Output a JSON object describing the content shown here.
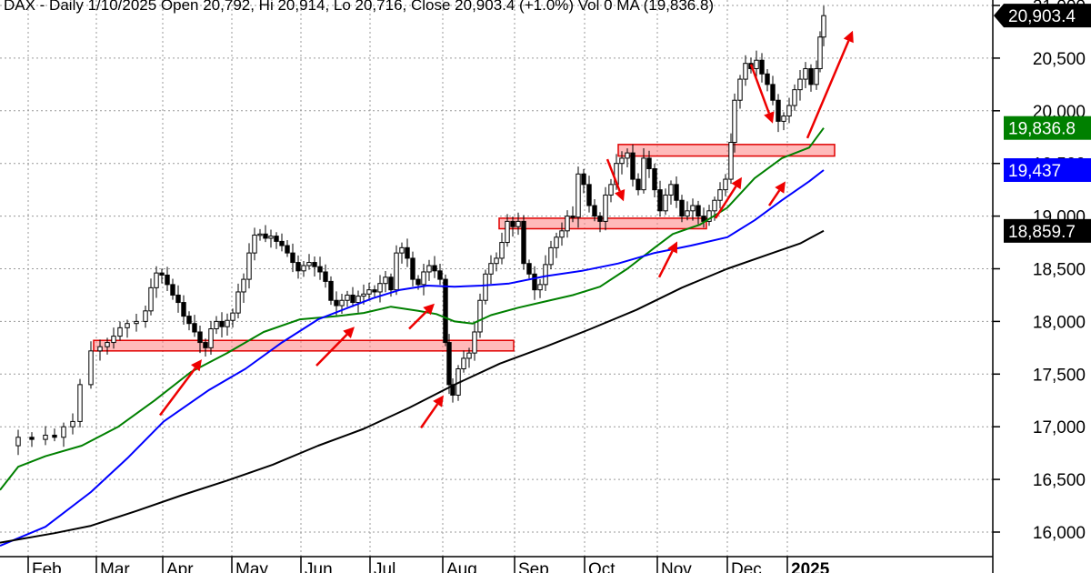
{
  "chart_data": {
    "type": "candlestick",
    "header": "DAX - Daily  1/10/2025  Open 20,792,  Hi 20,914,  Lo 20,716,  Close 20,903.4 (+1.0%)  Vol 0  MA (19,836.8)",
    "x_labels": [
      "Feb",
      "Mar",
      "Apr",
      "May",
      "Jun",
      "Jul",
      "Aug",
      "Sep",
      "Oct",
      "Nov",
      "Dec",
      "2025"
    ],
    "y_ticks": [
      "16,000",
      "16,500",
      "17,000",
      "17,500",
      "18,000",
      "18,500",
      "19,000",
      "19,500",
      "20,000",
      "20,500",
      "21,000"
    ],
    "ylim": [
      15870,
      21010
    ],
    "grid": true,
    "price_tags": [
      {
        "label": "20,903.4",
        "value": 20903.4,
        "color": "#000000",
        "text_color": "#ffffff",
        "arrow": true
      },
      {
        "label": "19,836.8",
        "value": 19836.8,
        "color": "#008000",
        "text_color": "#ffffff",
        "arrow": false
      },
      {
        "label": "19,437",
        "value": 19437,
        "color": "#0000ff",
        "text_color": "#ffffff",
        "arrow": false
      },
      {
        "label": "18,859.7",
        "value": 18859.7,
        "color": "#000000",
        "text_color": "#ffffff",
        "arrow": false
      }
    ],
    "series": [
      {
        "name": "MA",
        "color": "#008000",
        "points": [
          [
            0,
            16400
          ],
          [
            20,
            16620
          ],
          [
            50,
            16720
          ],
          [
            90,
            16820
          ],
          [
            130,
            17000
          ],
          [
            170,
            17250
          ],
          [
            210,
            17520
          ],
          [
            250,
            17700
          ],
          [
            290,
            17900
          ],
          [
            330,
            18020
          ],
          [
            370,
            18050
          ],
          [
            400,
            18080
          ],
          [
            430,
            18140
          ],
          [
            460,
            18100
          ],
          [
            480,
            18070
          ],
          [
            500,
            18000
          ],
          [
            520,
            17980
          ],
          [
            540,
            18060
          ],
          [
            570,
            18130
          ],
          [
            600,
            18190
          ],
          [
            630,
            18250
          ],
          [
            660,
            18330
          ],
          [
            690,
            18500
          ],
          [
            720,
            18700
          ],
          [
            740,
            18830
          ],
          [
            770,
            18920
          ],
          [
            800,
            19080
          ],
          [
            830,
            19360
          ],
          [
            860,
            19550
          ],
          [
            890,
            19650
          ],
          [
            906,
            19836.8
          ]
        ]
      },
      {
        "name": "MA",
        "color": "#0000ff",
        "points": [
          [
            0,
            15870
          ],
          [
            50,
            16050
          ],
          [
            100,
            16380
          ],
          [
            140,
            16700
          ],
          [
            180,
            17050
          ],
          [
            230,
            17350
          ],
          [
            270,
            17550
          ],
          [
            310,
            17800
          ],
          [
            350,
            18020
          ],
          [
            380,
            18120
          ],
          [
            410,
            18220
          ],
          [
            440,
            18300
          ],
          [
            470,
            18340
          ],
          [
            500,
            18330
          ],
          [
            530,
            18340
          ],
          [
            560,
            18360
          ],
          [
            600,
            18430
          ],
          [
            640,
            18480
          ],
          [
            680,
            18550
          ],
          [
            720,
            18650
          ],
          [
            760,
            18720
          ],
          [
            800,
            18800
          ],
          [
            830,
            18960
          ],
          [
            860,
            19150
          ],
          [
            890,
            19330
          ],
          [
            906,
            19437
          ]
        ]
      },
      {
        "name": "MA",
        "color": "#000000",
        "points": [
          [
            0,
            15900
          ],
          [
            60,
            15990
          ],
          [
            100,
            16060
          ],
          [
            150,
            16200
          ],
          [
            200,
            16350
          ],
          [
            250,
            16490
          ],
          [
            300,
            16640
          ],
          [
            350,
            16820
          ],
          [
            400,
            16980
          ],
          [
            450,
            17180
          ],
          [
            500,
            17400
          ],
          [
            550,
            17600
          ],
          [
            600,
            17760
          ],
          [
            650,
            17930
          ],
          [
            700,
            18110
          ],
          [
            750,
            18320
          ],
          [
            800,
            18500
          ],
          [
            850,
            18650
          ],
          [
            880,
            18740
          ],
          [
            906,
            18859.7
          ]
        ]
      }
    ],
    "close_path": [
      [
        5,
        16820
      ],
      [
        20,
        16900
      ],
      [
        35,
        16880
      ],
      [
        50,
        16920
      ],
      [
        60,
        16900
      ],
      [
        70,
        17000
      ],
      [
        80,
        17050
      ],
      [
        88,
        17400
      ],
      [
        100,
        17720
      ],
      [
        110,
        17760
      ],
      [
        118,
        17800
      ],
      [
        125,
        17860
      ],
      [
        132,
        17940
      ],
      [
        140,
        17980
      ],
      [
        150,
        18000
      ],
      [
        160,
        18100
      ],
      [
        166,
        18320
      ],
      [
        172,
        18460
      ],
      [
        178,
        18440
      ],
      [
        184,
        18350
      ],
      [
        190,
        18250
      ],
      [
        196,
        18180
      ],
      [
        202,
        18050
      ],
      [
        208,
        17980
      ],
      [
        214,
        17900
      ],
      [
        220,
        17800
      ],
      [
        226,
        17750
      ],
      [
        232,
        17930
      ],
      [
        238,
        18000
      ],
      [
        244,
        17950
      ],
      [
        250,
        18010
      ],
      [
        256,
        18080
      ],
      [
        262,
        18280
      ],
      [
        268,
        18400
      ],
      [
        274,
        18650
      ],
      [
        280,
        18820
      ],
      [
        286,
        18830
      ],
      [
        292,
        18790
      ],
      [
        298,
        18810
      ],
      [
        304,
        18760
      ],
      [
        310,
        18720
      ],
      [
        316,
        18650
      ],
      [
        322,
        18560
      ],
      [
        328,
        18480
      ],
      [
        334,
        18530
      ],
      [
        340,
        18560
      ],
      [
        346,
        18520
      ],
      [
        352,
        18470
      ],
      [
        358,
        18380
      ],
      [
        364,
        18200
      ],
      [
        370,
        18150
      ],
      [
        376,
        18200
      ],
      [
        382,
        18250
      ],
      [
        388,
        18180
      ],
      [
        394,
        18240
      ],
      [
        400,
        18260
      ],
      [
        406,
        18300
      ],
      [
        412,
        18280
      ],
      [
        418,
        18360
      ],
      [
        424,
        18420
      ],
      [
        430,
        18300
      ],
      [
        436,
        18650
      ],
      [
        442,
        18700
      ],
      [
        448,
        18600
      ],
      [
        454,
        18400
      ],
      [
        460,
        18350
      ],
      [
        466,
        18470
      ],
      [
        472,
        18530
      ],
      [
        478,
        18480
      ],
      [
        484,
        18400
      ],
      [
        490,
        17800
      ],
      [
        494,
        17400
      ],
      [
        498,
        17300
      ],
      [
        504,
        17550
      ],
      [
        510,
        17650
      ],
      [
        516,
        17700
      ],
      [
        522,
        17900
      ],
      [
        528,
        18200
      ],
      [
        534,
        18450
      ],
      [
        540,
        18550
      ],
      [
        546,
        18600
      ],
      [
        552,
        18750
      ],
      [
        558,
        18950
      ],
      [
        564,
        18900
      ],
      [
        570,
        18950
      ],
      [
        576,
        18550
      ],
      [
        582,
        18450
      ],
      [
        588,
        18300
      ],
      [
        594,
        18350
      ],
      [
        600,
        18540
      ],
      [
        606,
        18700
      ],
      [
        612,
        18800
      ],
      [
        618,
        18860
      ],
      [
        624,
        19000
      ],
      [
        630,
        18990
      ],
      [
        636,
        19400
      ],
      [
        642,
        19300
      ],
      [
        648,
        19100
      ],
      [
        654,
        19000
      ],
      [
        660,
        18950
      ],
      [
        666,
        19200
      ],
      [
        672,
        19300
      ],
      [
        678,
        19500
      ],
      [
        684,
        19550
      ],
      [
        690,
        19600
      ],
      [
        696,
        19350
      ],
      [
        702,
        19250
      ],
      [
        708,
        19550
      ],
      [
        714,
        19450
      ],
      [
        720,
        19250
      ],
      [
        726,
        19050
      ],
      [
        732,
        19200
      ],
      [
        738,
        19300
      ],
      [
        744,
        19150
      ],
      [
        750,
        19000
      ],
      [
        756,
        19050
      ],
      [
        762,
        19100
      ],
      [
        768,
        19000
      ],
      [
        774,
        18950
      ],
      [
        780,
        19050
      ],
      [
        786,
        19150
      ],
      [
        792,
        19250
      ],
      [
        798,
        19350
      ],
      [
        804,
        19700
      ],
      [
        808,
        20100
      ],
      [
        814,
        20300
      ],
      [
        820,
        20450
      ],
      [
        826,
        20400
      ],
      [
        832,
        20480
      ],
      [
        838,
        20350
      ],
      [
        844,
        20250
      ],
      [
        850,
        20100
      ],
      [
        856,
        19900
      ],
      [
        862,
        19950
      ],
      [
        868,
        20050
      ],
      [
        874,
        20200
      ],
      [
        880,
        20300
      ],
      [
        886,
        20400
      ],
      [
        892,
        20250
      ],
      [
        898,
        20400
      ],
      [
        902,
        20700
      ],
      [
        906,
        20903.4
      ]
    ],
    "zones": [
      {
        "from_x": 103,
        "to_x": 565,
        "low": 17720,
        "high": 17820
      },
      {
        "from_x": 549,
        "to_x": 777,
        "low": 18880,
        "high": 18980
      },
      {
        "from_x": 680,
        "to_x": 918,
        "low": 19570,
        "high": 19680
      }
    ],
    "arrows": [
      {
        "from": [
          176,
          17110
        ],
        "to": [
          222,
          17640
        ]
      },
      {
        "from": [
          348,
          17580
        ],
        "to": [
          390,
          17950
        ]
      },
      {
        "from": [
          450,
          17930
        ],
        "to": [
          478,
          18170
        ]
      },
      {
        "from": [
          463,
          16990
        ],
        "to": [
          488,
          17300
        ]
      },
      {
        "from": [
          725,
          18420
        ],
        "to": [
          745,
          18760
        ]
      },
      {
        "from": [
          787,
          18980
        ],
        "to": [
          816,
          19370
        ]
      },
      {
        "from": [
          846,
          19100
        ],
        "to": [
          864,
          19330
        ]
      },
      {
        "from": [
          668,
          19540
        ],
        "to": [
          686,
          19140
        ]
      },
      {
        "from": [
          826,
          20440
        ],
        "to": [
          850,
          19880
        ]
      },
      {
        "from": [
          888,
          19740
        ],
        "to": [
          938,
          20760
        ]
      }
    ]
  }
}
